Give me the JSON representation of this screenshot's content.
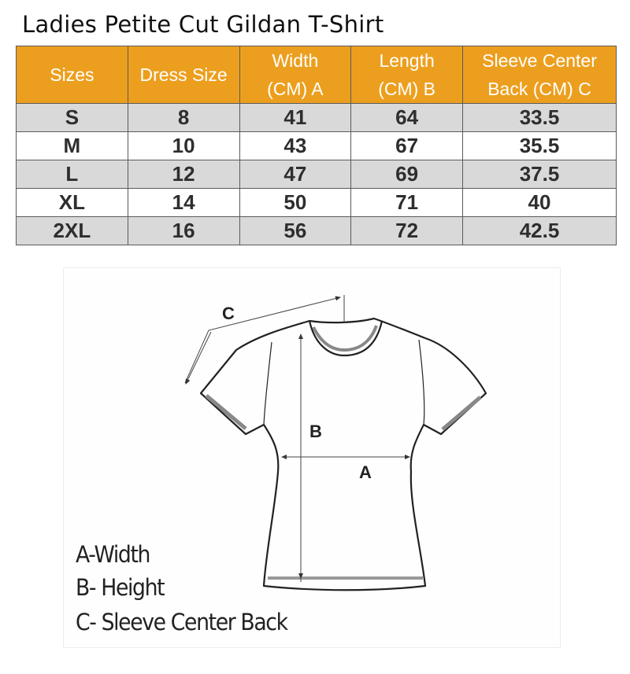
{
  "title": "Ladies Petite Cut Gildan T-Shirt",
  "table": {
    "headers": [
      [
        "Sizes"
      ],
      [
        "Dress Size"
      ],
      [
        "Width",
        "(CM) A"
      ],
      [
        "Length",
        "(CM) B"
      ],
      [
        "Sleeve Center",
        "Back (CM) C"
      ]
    ],
    "rows": [
      [
        "S",
        "8",
        "41",
        "64",
        "33.5"
      ],
      [
        "M",
        "10",
        "43",
        "67",
        "35.5"
      ],
      [
        "L",
        "12",
        "47",
        "69",
        "37.5"
      ],
      [
        "XL",
        "14",
        "50",
        "71",
        "40"
      ],
      [
        "2XL",
        "16",
        "56",
        "72",
        "42.5"
      ]
    ]
  },
  "colors": {
    "header_bg": "#EC9F1E",
    "stripe_bg": "#D9D9D9"
  },
  "diagram": {
    "label_a": "A",
    "label_b": "B",
    "label_c": "C",
    "legend": [
      "A-Width",
      "B- Height",
      "C- Sleeve Center Back"
    ]
  }
}
